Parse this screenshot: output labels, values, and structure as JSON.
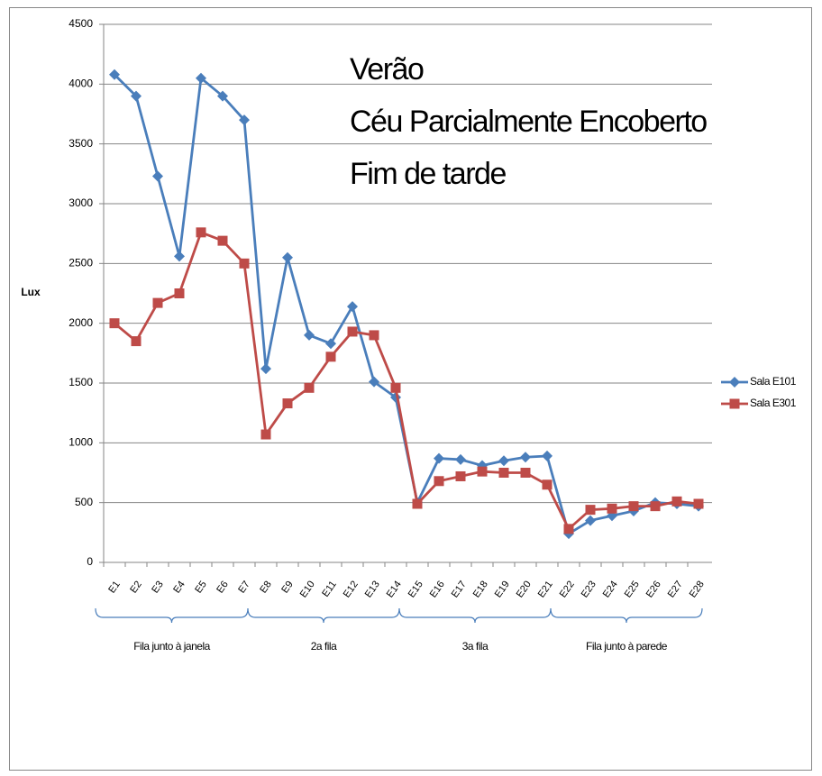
{
  "chart_data": {
    "type": "line",
    "annotation": [
      "Verão",
      "Céu Parcialmente Encoberto",
      "Fim de tarde"
    ],
    "y_label": "Lux",
    "categories": [
      "E1",
      "E2",
      "E3",
      "E4",
      "E5",
      "E6",
      "E7",
      "E8",
      "E9",
      "E10",
      "E11",
      "E12",
      "E13",
      "E14",
      "E15",
      "E16",
      "E17",
      "E18",
      "E19",
      "E20",
      "E21",
      "E22",
      "E23",
      "E24",
      "E25",
      "E26",
      "E27",
      "E28"
    ],
    "groups": [
      "Fila junto à janela",
      "2a fila",
      "3a fila",
      "Fila junto à parede"
    ],
    "series": [
      {
        "name": "Sala E101",
        "color": "#4a7ebb",
        "marker": "diamond",
        "values": [
          4080,
          3900,
          3230,
          2560,
          4050,
          3900,
          3700,
          1620,
          2550,
          1900,
          1830,
          2140,
          1510,
          1380,
          500,
          870,
          860,
          810,
          850,
          880,
          890,
          240,
          350,
          390,
          430,
          500,
          490,
          470
        ]
      },
      {
        "name": "Sala E301",
        "color": "#be4b48",
        "marker": "square",
        "values": [
          2000,
          1850,
          2170,
          2250,
          2760,
          2690,
          2500,
          1070,
          1330,
          1460,
          1720,
          1930,
          1900,
          1460,
          490,
          680,
          720,
          760,
          750,
          750,
          650,
          280,
          440,
          450,
          470,
          470,
          510,
          490
        ]
      }
    ],
    "ylim": [
      0,
      4500
    ],
    "yticks": [
      0,
      500,
      1000,
      1500,
      2000,
      2500,
      3000,
      3500,
      4000,
      4500
    ],
    "grid": true,
    "legend": "right"
  }
}
